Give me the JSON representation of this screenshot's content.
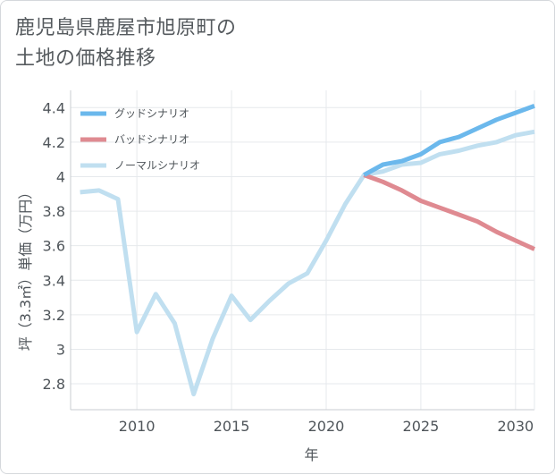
{
  "title_lines": [
    "鹿児島県鹿屋市旭原町の",
    "土地の価格推移"
  ],
  "chart_data": {
    "type": "line",
    "title": "鹿児島県鹿屋市旭原町の土地の価格推移",
    "xlabel": "年",
    "ylabel": "坪（3.3㎡）単価（万円）",
    "xlim": [
      2006.5,
      2031
    ],
    "ylim": [
      2.65,
      4.5
    ],
    "x_ticks": [
      2010,
      2015,
      2020,
      2025,
      2030
    ],
    "y_ticks": [
      2.8,
      3,
      3.2,
      3.4,
      3.6,
      3.8,
      4,
      4.2,
      4.4
    ],
    "grid": true,
    "legend_position": "top-left",
    "series": [
      {
        "name": "グッドシナリオ",
        "color": "#6bb8ec",
        "x": [
          2022,
          2023,
          2024,
          2025,
          2026,
          2027,
          2028,
          2029,
          2030,
          2031
        ],
        "values": [
          4.01,
          4.07,
          4.09,
          4.13,
          4.2,
          4.23,
          4.28,
          4.33,
          4.37,
          4.41
        ]
      },
      {
        "name": "バッドシナリオ",
        "color": "#df8a91",
        "x": [
          2022,
          2023,
          2024,
          2025,
          2026,
          2027,
          2028,
          2029,
          2030,
          2031
        ],
        "values": [
          4.01,
          3.97,
          3.92,
          3.86,
          3.82,
          3.78,
          3.74,
          3.68,
          3.63,
          3.58
        ]
      },
      {
        "name": "ノーマルシナリオ",
        "color": "#c0dff0",
        "x": [
          2007,
          2008,
          2009,
          2010,
          2011,
          2012,
          2013,
          2014,
          2015,
          2016,
          2017,
          2018,
          2019,
          2020,
          2021,
          2022,
          2023,
          2024,
          2025,
          2026,
          2027,
          2028,
          2029,
          2030,
          2031
        ],
        "values": [
          3.91,
          3.92,
          3.87,
          3.1,
          3.32,
          3.15,
          2.74,
          3.06,
          3.31,
          3.17,
          3.28,
          3.38,
          3.44,
          3.63,
          3.84,
          4.01,
          4.03,
          4.07,
          4.08,
          4.13,
          4.15,
          4.18,
          4.2,
          4.24,
          4.26
        ]
      }
    ]
  }
}
